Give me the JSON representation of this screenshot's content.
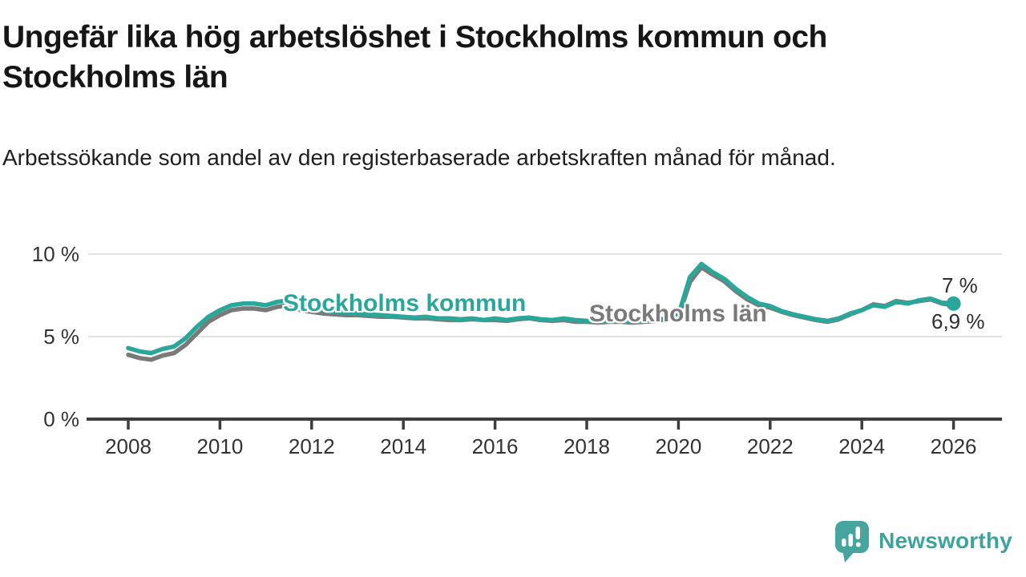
{
  "header": {
    "title": "Ungefär lika hög arbetslöshet i Stockholms kommun och Stockholms län",
    "subtitle": "Arbetssökande som andel av den registerbaserade arbetskraften månad för månad."
  },
  "footer": {
    "brand": "Newsworthy",
    "brand_color": "#3ea39d",
    "logo_icon": "speech-bubble-bar-chart-icon"
  },
  "chart_data": {
    "type": "line",
    "unit": "%",
    "grid": "horizontal",
    "legend": "inline-labels",
    "xlim": [
      2008,
      2026.2
    ],
    "ylim": [
      0,
      10
    ],
    "x_note": "decimal years, quarterly estimates of monthly series, 2008–early 2026",
    "x": [
      2008,
      2008.25,
      2008.5,
      2008.75,
      2009,
      2009.25,
      2009.5,
      2009.75,
      2010,
      2010.25,
      2010.5,
      2010.75,
      2011,
      2011.25,
      2011.5,
      2011.75,
      2012,
      2012.25,
      2012.5,
      2012.75,
      2013,
      2013.25,
      2013.5,
      2013.75,
      2014,
      2014.25,
      2014.5,
      2014.75,
      2015,
      2015.25,
      2015.5,
      2015.75,
      2016,
      2016.25,
      2016.5,
      2016.75,
      2017,
      2017.25,
      2017.5,
      2017.75,
      2018,
      2018.25,
      2018.5,
      2018.75,
      2019,
      2019.25,
      2019.5,
      2019.75,
      2020,
      2020.25,
      2020.5,
      2020.75,
      2021,
      2021.25,
      2021.5,
      2021.75,
      2022,
      2022.25,
      2022.5,
      2022.75,
      2023,
      2023.25,
      2023.5,
      2023.75,
      2024,
      2024.25,
      2024.5,
      2024.75,
      2025,
      2025.25,
      2025.5,
      2025.75,
      2026
    ],
    "series": [
      {
        "name": "Stockholms kommun",
        "color": "#2aa79b",
        "end_label": "7 %",
        "end_value": 7.0,
        "end_dot": true,
        "values": [
          4.3,
          4.1,
          4.0,
          4.25,
          4.4,
          4.9,
          5.6,
          6.2,
          6.6,
          6.9,
          7.0,
          7.0,
          6.9,
          7.1,
          7.2,
          6.9,
          6.7,
          6.6,
          6.5,
          6.45,
          6.4,
          6.35,
          6.3,
          6.25,
          6.2,
          6.15,
          6.2,
          6.1,
          6.1,
          6.05,
          6.1,
          6.0,
          6.1,
          6.0,
          6.1,
          6.15,
          6.05,
          6.0,
          6.1,
          6.0,
          5.95,
          5.9,
          6.0,
          5.95,
          5.9,
          5.95,
          6.0,
          6.1,
          6.3,
          8.6,
          9.4,
          8.9,
          8.5,
          7.9,
          7.4,
          7.0,
          6.85,
          6.55,
          6.35,
          6.2,
          6.05,
          5.95,
          6.1,
          6.4,
          6.6,
          6.9,
          6.8,
          7.1,
          7.0,
          7.2,
          7.3,
          7.05,
          7.0
        ]
      },
      {
        "name": "Stockholms län",
        "color": "#7a7a7a",
        "end_label": "6,9 %",
        "end_value": 6.9,
        "end_dot": false,
        "values": [
          3.9,
          3.7,
          3.6,
          3.85,
          4.0,
          4.5,
          5.2,
          5.9,
          6.3,
          6.6,
          6.7,
          6.7,
          6.6,
          6.8,
          6.9,
          6.6,
          6.5,
          6.4,
          6.35,
          6.3,
          6.3,
          6.25,
          6.2,
          6.2,
          6.15,
          6.1,
          6.1,
          6.05,
          6.0,
          6.0,
          6.05,
          6.0,
          6.0,
          5.95,
          6.05,
          6.1,
          6.0,
          5.95,
          6.0,
          5.9,
          5.9,
          5.85,
          5.9,
          5.9,
          5.85,
          5.9,
          5.95,
          6.05,
          6.2,
          8.3,
          9.2,
          8.75,
          8.35,
          7.75,
          7.25,
          6.9,
          6.75,
          6.5,
          6.3,
          6.15,
          6.0,
          5.9,
          6.05,
          6.35,
          6.6,
          6.95,
          6.85,
          7.15,
          7.05,
          7.15,
          7.25,
          7.0,
          6.9
        ]
      }
    ],
    "yticks": [
      {
        "v": 0,
        "label": "0 %"
      },
      {
        "v": 5,
        "label": "5 %"
      },
      {
        "v": 10,
        "label": "10 %"
      }
    ],
    "xticks": [
      {
        "v": 2008,
        "label": "2008"
      },
      {
        "v": 2010,
        "label": "2010"
      },
      {
        "v": 2012,
        "label": "2012"
      },
      {
        "v": 2014,
        "label": "2014"
      },
      {
        "v": 2016,
        "label": "2016"
      },
      {
        "v": 2018,
        "label": "2018"
      },
      {
        "v": 2020,
        "label": "2020"
      },
      {
        "v": 2022,
        "label": "2022"
      },
      {
        "v": 2024,
        "label": "2024"
      },
      {
        "v": 2026,
        "label": "2026"
      }
    ]
  }
}
